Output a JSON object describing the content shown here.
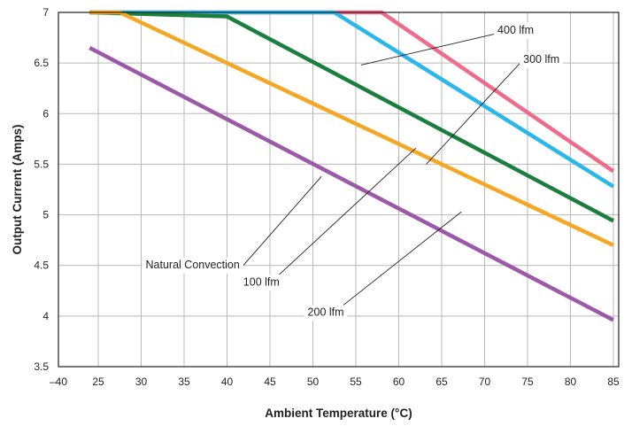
{
  "chart_data": {
    "type": "line",
    "xlabel": "Ambient Temperature (°C)",
    "ylabel": "Output Current (Amps)",
    "x_ticks": [
      "–40",
      "25",
      "30",
      "35",
      "40",
      "45",
      "50",
      "55",
      "60",
      "65",
      "70",
      "75",
      "80",
      "85"
    ],
    "y_ticks": [
      "3.5",
      "4",
      "4.5",
      "5",
      "5.5",
      "6",
      "6.5",
      "7"
    ],
    "ylim": [
      3.5,
      7
    ],
    "grid": true,
    "colors": {
      "natural_convection": "#9b59a8",
      "lfm_100": "#f5a623",
      "lfm_200": "#1a7f3c",
      "lfm_300": "#2ab7ea",
      "lfm_400": "#ef6b8a",
      "grid": "#b9b9b9",
      "frame": "#231f20"
    },
    "series": [
      {
        "name": "Natural Convection",
        "x": [
          24,
          85
        ],
        "y": [
          6.65,
          3.96
        ]
      },
      {
        "name": "100 lfm",
        "x": [
          24,
          27.5,
          85
        ],
        "y": [
          7,
          7,
          4.7
        ]
      },
      {
        "name": "200 lfm",
        "x": [
          24,
          40,
          85
        ],
        "y": [
          7,
          6.96,
          4.94
        ]
      },
      {
        "name": "300 lfm",
        "x": [
          24,
          52.5,
          85
        ],
        "y": [
          7,
          7,
          5.28
        ]
      },
      {
        "name": "400 lfm",
        "x": [
          24,
          58,
          85
        ],
        "y": [
          7,
          7,
          5.43
        ]
      }
    ],
    "annotations": [
      {
        "text": "400 lfm",
        "x": 71.5,
        "y": 6.82,
        "target_x": 55.6,
        "target_y": 6.48
      },
      {
        "text": "300 lfm",
        "x": 74.5,
        "y": 6.53,
        "target_x": 63.2,
        "target_y": 5.5
      },
      {
        "text": "Natural Convection",
        "x": 36,
        "y": 4.5,
        "target_x": 51,
        "target_y": 5.38
      },
      {
        "text": "100 lfm",
        "x": 44,
        "y": 4.33,
        "target_x": 62,
        "target_y": 5.66
      },
      {
        "text": "200 lfm",
        "x": 51.5,
        "y": 4.03,
        "target_x": 67.3,
        "target_y": 5.03
      }
    ]
  }
}
